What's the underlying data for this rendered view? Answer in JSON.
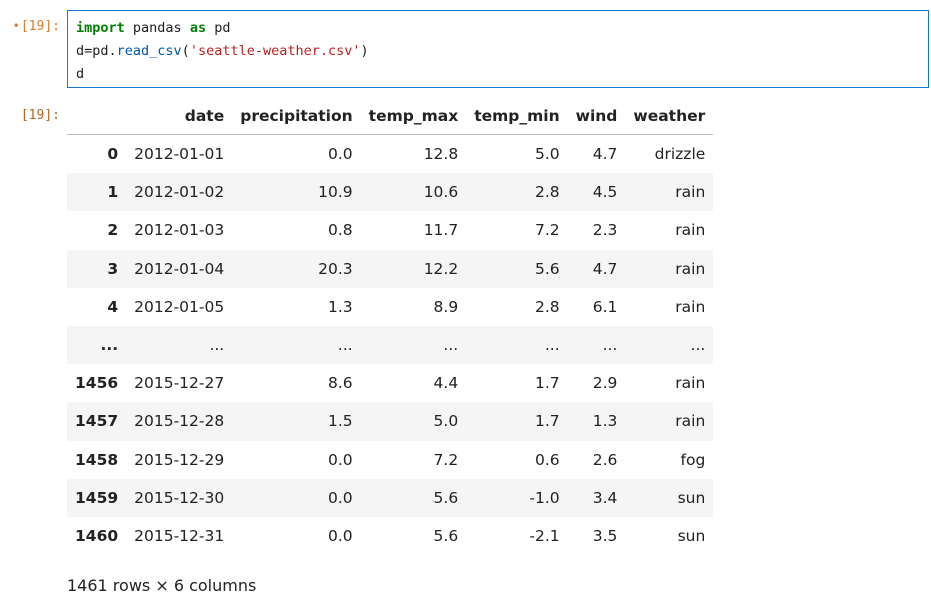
{
  "input_prompt": {
    "dot": "•",
    "label": "[19]:"
  },
  "output_prompt": "[19]:",
  "code": {
    "line1": {
      "kw1": "import",
      "mid": " pandas ",
      "kw2": "as",
      "end": " pd"
    },
    "line2": {
      "a": "d=pd.",
      "fn": "read_csv",
      "b": "(",
      "str": "'seattle-weather.csv'",
      "c": ")"
    },
    "line3": "d"
  },
  "table": {
    "columns": [
      "date",
      "precipitation",
      "temp_max",
      "temp_min",
      "wind",
      "weather"
    ],
    "rows": [
      {
        "idx": "0",
        "cells": [
          "2012-01-01",
          "0.0",
          "12.8",
          "5.0",
          "4.7",
          "drizzle"
        ]
      },
      {
        "idx": "1",
        "cells": [
          "2012-01-02",
          "10.9",
          "10.6",
          "2.8",
          "4.5",
          "rain"
        ]
      },
      {
        "idx": "2",
        "cells": [
          "2012-01-03",
          "0.8",
          "11.7",
          "7.2",
          "2.3",
          "rain"
        ]
      },
      {
        "idx": "3",
        "cells": [
          "2012-01-04",
          "20.3",
          "12.2",
          "5.6",
          "4.7",
          "rain"
        ]
      },
      {
        "idx": "4",
        "cells": [
          "2012-01-05",
          "1.3",
          "8.9",
          "2.8",
          "6.1",
          "rain"
        ]
      },
      {
        "idx": "...",
        "cells": [
          "...",
          "...",
          "...",
          "...",
          "...",
          "..."
        ]
      },
      {
        "idx": "1456",
        "cells": [
          "2015-12-27",
          "8.6",
          "4.4",
          "1.7",
          "2.9",
          "rain"
        ]
      },
      {
        "idx": "1457",
        "cells": [
          "2015-12-28",
          "1.5",
          "5.0",
          "1.7",
          "1.3",
          "rain"
        ]
      },
      {
        "idx": "1458",
        "cells": [
          "2015-12-29",
          "0.0",
          "7.2",
          "0.6",
          "2.6",
          "fog"
        ]
      },
      {
        "idx": "1459",
        "cells": [
          "2015-12-30",
          "0.0",
          "5.6",
          "-1.0",
          "3.4",
          "sun"
        ]
      },
      {
        "idx": "1460",
        "cells": [
          "2015-12-31",
          "0.0",
          "5.6",
          "-2.1",
          "3.5",
          "sun"
        ]
      }
    ]
  },
  "shape_text": "1461 rows × 6 columns"
}
